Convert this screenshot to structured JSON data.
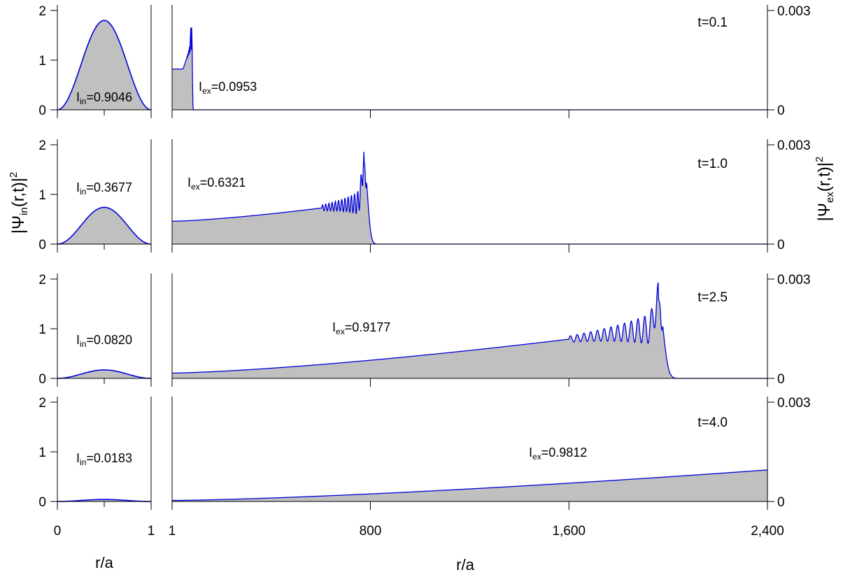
{
  "chart_data": {
    "type": "area",
    "x_axis_title": "r/a",
    "inner_xlim": [
      0,
      1
    ],
    "inner_ticks": [
      "0",
      "1"
    ],
    "outer_xlim": [
      1,
      2400
    ],
    "outer_ticks": [
      "1",
      "800",
      "1,600",
      "2,400"
    ],
    "left_ylabel": {
      "main": "|Ψ",
      "sub": "in",
      "rest": "(r,t)|",
      "sup": "2"
    },
    "right_ylabel": {
      "main": "|Ψ",
      "sub": "ex",
      "rest": "(r,t)|",
      "sup": "2"
    },
    "left_ylim": [
      0,
      2
    ],
    "left_ticks": [
      "0",
      "1",
      "2"
    ],
    "right_ylim": [
      0,
      0.003
    ],
    "right_ticks": [
      "0",
      "0.003"
    ],
    "fill_color": "#c0c0c0",
    "line_color": "#0000dd",
    "panels": [
      {
        "time": "t=0.1",
        "inner": {
          "label": "I",
          "sub": "in",
          "value": "=0.9046",
          "peak": 1.8
        },
        "outer": {
          "label": "I",
          "sub": "ex",
          "value": "=0.0953",
          "start": 0.00123,
          "front": 80,
          "front_peak": 0.0025,
          "width": 3,
          "decay": 0,
          "osc_count": 7
        }
      },
      {
        "time": "t=1.0",
        "inner": {
          "label": "I",
          "sub": "in",
          "value": "=0.3677",
          "peak": 0.74
        },
        "outer": {
          "label": "I",
          "sub": "ex",
          "value": "=0.6321",
          "start": 0.00069,
          "front": 775,
          "front_peak": 0.00243,
          "width": 12,
          "decay": 0.00126,
          "osc_count": 10
        }
      },
      {
        "time": "t=2.5",
        "inner": {
          "label": "I",
          "sub": "in",
          "value": "=0.0820",
          "peak": 0.17
        },
        "outer": {
          "label": "I",
          "sub": "ex",
          "value": "=0.9177",
          "start": 0.00016,
          "front": 1960,
          "front_peak": 0.00237,
          "width": 18,
          "decay": 0.00152,
          "osc_count": 12
        }
      },
      {
        "time": "t=4.0",
        "inner": {
          "label": "I",
          "sub": "in",
          "value": "=0.0183",
          "peak": 0.04
        },
        "outer": {
          "label": "I",
          "sub": "ex",
          "value": "=0.9812",
          "start": 3e-05,
          "front": 3150,
          "front_peak": 0.00234,
          "width": 22,
          "decay": 0.00138,
          "osc_count": 12
        }
      }
    ]
  }
}
